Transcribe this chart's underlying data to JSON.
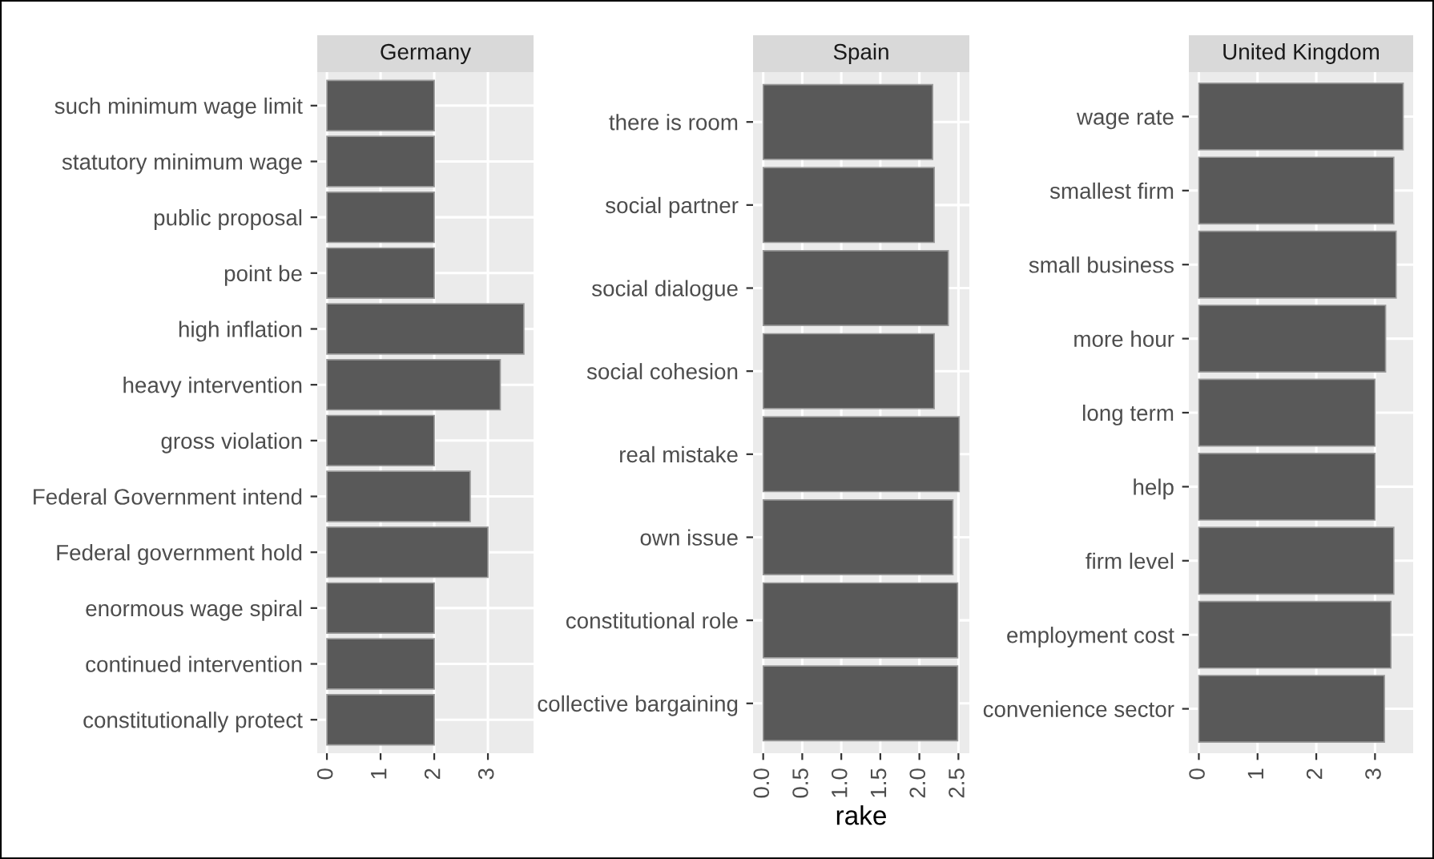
{
  "chart_data": [
    {
      "type": "bar",
      "orientation": "horizontal",
      "title": "Germany",
      "categories": [
        "such minimum wage limit",
        "statutory minimum wage",
        "public proposal",
        "point be",
        "high inflation",
        "heavy intervention",
        "gross violation",
        "Federal Government intend",
        "Federal government hold",
        "enormous wage spiral",
        "continued intervention",
        "constitutionally protect"
      ],
      "values": [
        2,
        2,
        2,
        2,
        3.67,
        3.23,
        2,
        2.67,
        3,
        2,
        2,
        2
      ],
      "color": "#595959",
      "xlim": [
        -0.18,
        3.85
      ],
      "xticks": [
        0,
        1,
        2,
        3
      ],
      "grid": true
    },
    {
      "type": "bar",
      "orientation": "horizontal",
      "title": "Spain",
      "xlabel": "rake",
      "categories": [
        "there is room",
        "social partner",
        "social dialogue",
        "social cohesion",
        "real mistake",
        "own issue",
        "constitutional role",
        "collective bargaining"
      ],
      "values": [
        2.17,
        2.19,
        2.37,
        2.19,
        2.51,
        2.43,
        2.49,
        2.49
      ],
      "color": "#595959",
      "xlim": [
        -0.13,
        2.64
      ],
      "xticks": [
        {
          "value": 0,
          "label": "0.0"
        },
        0.5,
        {
          "value": 1,
          "label": "1.0"
        },
        1.5,
        {
          "value": 2,
          "label": "2.0"
        },
        2.5
      ],
      "grid": true
    },
    {
      "type": "bar",
      "orientation": "horizontal",
      "title": "United Kingdom",
      "categories": [
        "wage rate",
        "smallest firm",
        "small business",
        "more hour",
        "long term",
        "help",
        "firm level",
        "employment cost",
        "convenience sector"
      ],
      "values": [
        3.48,
        3.32,
        3.36,
        3.18,
        3.0,
        3.0,
        3.32,
        3.27,
        3.16
      ],
      "color": "#595959",
      "xlim": [
        -0.17,
        3.65
      ],
      "xticks": [
        0,
        1,
        2,
        3
      ],
      "grid": true
    }
  ]
}
